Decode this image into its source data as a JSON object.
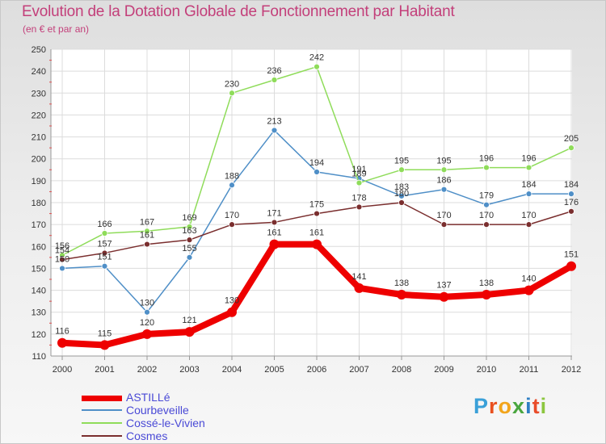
{
  "header": {
    "title": "Evolution de la Dotation Globale de Fonctionnement par Habitant",
    "subtitle": "(en € et par an)"
  },
  "brand": {
    "letters": [
      "P",
      "r",
      "o",
      "x",
      "i",
      "t",
      "i"
    ],
    "colors": [
      "#3aa0d8",
      "#e9501f",
      "#f2a51c",
      "#4aa63f",
      "#2f7fc4",
      "#e94c2a",
      "#8cc63f"
    ]
  },
  "chart_data": {
    "type": "line",
    "title": "Evolution de la Dotation Globale de Fonctionnement par Habitant",
    "ylabel": "(en € et par an)",
    "xlabel": "",
    "categories": [
      "2000",
      "2001",
      "2002",
      "2003",
      "2004",
      "2005",
      "2006",
      "2007",
      "2008",
      "2009",
      "2010",
      "2011",
      "2012"
    ],
    "ylim": [
      110,
      250
    ],
    "yticks": [
      110,
      120,
      130,
      140,
      150,
      160,
      170,
      180,
      190,
      200,
      210,
      220,
      230,
      240,
      250
    ],
    "grid": true,
    "legend_position": "bottom-left",
    "series": [
      {
        "name": "ASTILLé",
        "color": "#ee0000",
        "values": [
          116,
          115,
          120,
          121,
          130,
          161,
          161,
          141,
          138,
          137,
          138,
          140,
          151
        ]
      },
      {
        "name": "Courbeveille",
        "color": "#4f8fc7",
        "values": [
          150,
          151,
          130,
          155,
          188,
          213,
          194,
          191,
          183,
          186,
          179,
          184,
          184
        ]
      },
      {
        "name": "Cossé-le-Vivien",
        "color": "#8fdc5a",
        "values": [
          156,
          166,
          167,
          169,
          230,
          236,
          242,
          189,
          195,
          195,
          196,
          196,
          205
        ]
      },
      {
        "name": "Cosmes",
        "color": "#7a2e2e",
        "values": [
          154,
          157,
          161,
          163,
          170,
          171,
          175,
          178,
          180,
          170,
          170,
          170,
          176
        ]
      }
    ]
  }
}
